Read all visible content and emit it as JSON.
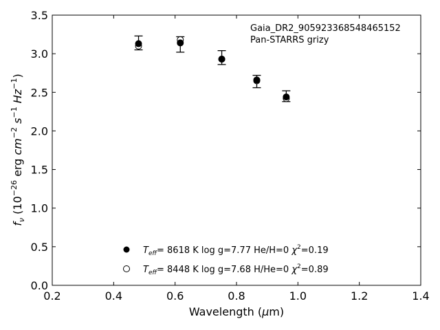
{
  "chart_data": {
    "type": "scatter",
    "xlabel": "Wavelength (μm)",
    "ylabel": "f_ν (10^-26 erg cm^-2 s^-1 Hz^-1)",
    "xlim": [
      0.2,
      1.4
    ],
    "ylim": [
      0.0,
      3.5
    ],
    "x_ticks": [
      "0.2",
      "0.4",
      "0.6",
      "0.8",
      "1.0",
      "1.2",
      "1.4"
    ],
    "y_ticks": [
      "0.0",
      "0.5",
      "1.0",
      "1.5",
      "2.0",
      "2.5",
      "3.0",
      "3.5"
    ],
    "grid": false,
    "annotation": {
      "line1": "Gaia_DR2_905923368548465152",
      "line2": "Pan-STARRS grizy"
    },
    "observed": {
      "x": [
        0.481,
        0.617,
        0.752,
        0.866,
        0.962
      ],
      "y": [
        3.14,
        3.12,
        2.95,
        2.64,
        2.45
      ],
      "yerr": [
        0.09,
        0.1,
        0.09,
        0.08,
        0.07
      ]
    },
    "series": [
      {
        "marker": "filled-circle",
        "legend_teff": "8618 K",
        "legend_logg": "log g=7.77",
        "legend_comp": "He/H=0",
        "legend_chi2": "=0.19",
        "x": [
          0.481,
          0.617,
          0.752,
          0.866,
          0.962
        ],
        "y": [
          3.13,
          3.14,
          2.93,
          2.66,
          2.44
        ]
      },
      {
        "marker": "open-circle",
        "legend_teff": "8448 K",
        "legend_logg": "log g=7.68",
        "legend_comp": "H/He=0",
        "legend_chi2": "=0.89",
        "x": [
          0.481,
          0.617,
          0.752,
          0.866,
          0.962
        ],
        "y": [
          3.1,
          3.18,
          2.93,
          2.65,
          2.42
        ]
      }
    ],
    "legend_position": "lower-center"
  }
}
